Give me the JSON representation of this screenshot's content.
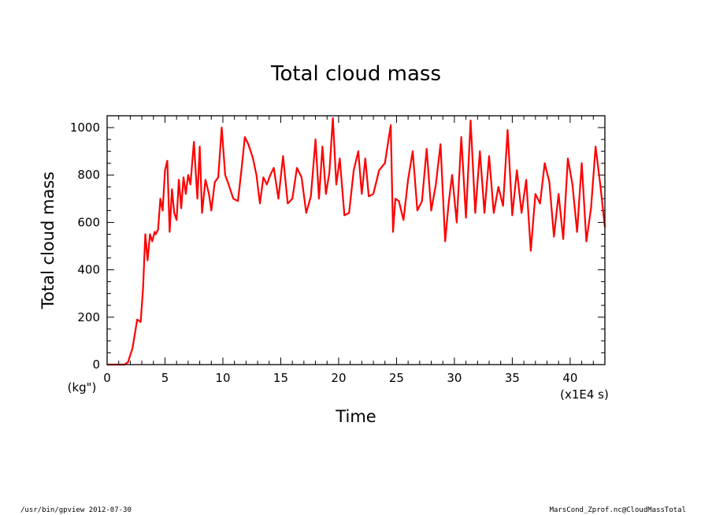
{
  "footer": {
    "left": "/usr/bin/gpview   2012-07-30",
    "right": "MarsCond_Zprof.nc@CloudMassTotal"
  },
  "chart_data": {
    "type": "line",
    "title": "Total cloud mass",
    "xlabel": "Time",
    "ylabel": "Total cloud mass",
    "xunit": "(x1E4 s)",
    "yunit": "(kg\")",
    "xlim": [
      0,
      43
    ],
    "ylim": [
      0,
      1050
    ],
    "xticks": [
      0,
      5,
      10,
      15,
      20,
      25,
      30,
      35,
      40
    ],
    "yticks": [
      0,
      200,
      400,
      600,
      800,
      1000
    ],
    "grid": false,
    "color": "#ff0000",
    "series": [
      {
        "x": [
          0,
          1.5,
          1.8,
          2.2,
          2.6,
          2.9,
          3.1,
          3.3,
          3.5,
          3.7,
          3.9,
          4.1,
          4.2,
          4.4,
          4.6,
          4.8,
          5.0,
          5.2,
          5.4,
          5.6,
          5.8,
          6.0,
          6.2,
          6.4,
          6.6,
          6.8,
          7.0,
          7.2,
          7.5,
          7.8,
          8.0,
          8.2,
          8.5,
          8.8,
          9.0,
          9.3,
          9.6,
          9.9,
          10.2,
          10.5,
          10.9,
          11.3,
          11.6,
          11.9,
          12.2,
          12.6,
          12.9,
          13.2,
          13.5,
          13.8,
          14.1,
          14.4,
          14.8,
          15.2,
          15.6,
          16.0,
          16.4,
          16.8,
          17.2,
          17.6,
          18.0,
          18.3,
          18.6,
          18.9,
          19.2,
          19.5,
          19.8,
          20.1,
          20.5,
          20.9,
          21.3,
          21.7,
          22.0,
          22.3,
          22.6,
          23.0,
          23.5,
          24.0,
          24.5,
          24.7,
          24.9,
          25.2,
          25.6,
          26.0,
          26.4,
          26.8,
          27.2,
          27.6,
          28.0,
          28.4,
          28.8,
          29.2,
          29.5,
          29.8,
          30.2,
          30.6,
          31.0,
          31.4,
          31.8,
          32.2,
          32.6,
          33.0,
          33.4,
          33.8,
          34.2,
          34.6,
          35.0,
          35.4,
          35.8,
          36.2,
          36.6,
          37.0,
          37.4,
          37.8,
          38.2,
          38.6,
          39.0,
          39.4,
          39.8,
          40.2,
          40.6,
          41.0,
          41.4,
          41.8,
          42.2,
          42.6,
          43.0
        ],
        "values": [
          0,
          0,
          10,
          70,
          190,
          180,
          320,
          550,
          440,
          550,
          520,
          560,
          550,
          570,
          700,
          650,
          820,
          860,
          560,
          740,
          640,
          610,
          780,
          660,
          790,
          720,
          800,
          760,
          940,
          700,
          920,
          640,
          780,
          720,
          650,
          770,
          790,
          1000,
          800,
          760,
          700,
          690,
          820,
          960,
          930,
          870,
          800,
          680,
          790,
          760,
          800,
          830,
          700,
          880,
          680,
          700,
          830,
          790,
          640,
          710,
          950,
          700,
          920,
          720,
          810,
          1040,
          760,
          870,
          630,
          640,
          820,
          900,
          720,
          870,
          710,
          720,
          820,
          850,
          1010,
          560,
          700,
          690,
          610,
          780,
          900,
          650,
          690,
          910,
          650,
          760,
          930,
          520,
          680,
          800,
          600,
          960,
          620,
          1030,
          640,
          900,
          640,
          880,
          640,
          750,
          670,
          990,
          630,
          820,
          640,
          780,
          480,
          720,
          680,
          850,
          770,
          540,
          720,
          530,
          870,
          760,
          560,
          850,
          520,
          660,
          920,
          760,
          580
        ]
      }
    ]
  }
}
